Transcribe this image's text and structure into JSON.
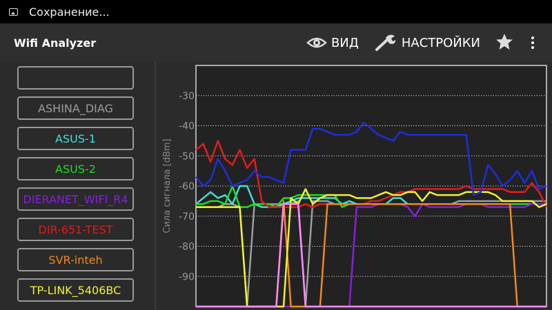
{
  "status_bar": {
    "icon": "image-icon",
    "text": "Сохранение..."
  },
  "app_bar": {
    "title": "Wifi Analyzer",
    "view_label": "ВИД",
    "view_icon": "eye-icon",
    "settings_label": "НАСТРОЙКИ",
    "settings_icon": "wrench-icon",
    "star_icon": "star-icon",
    "overflow_icon": "overflow-menu-icon"
  },
  "networks": [
    {
      "label": "",
      "color": "#ffffff"
    },
    {
      "label": "ASHINA_DIAG",
      "color": "#9e9e9e"
    },
    {
      "label": "ASUS-1",
      "color": "#40e0d8"
    },
    {
      "label": "ASUS-2",
      "color": "#22dd22"
    },
    {
      "label": "DIERANET_WIFI_R4",
      "color": "#8a1ee0"
    },
    {
      "label": "DIR-651-TEST",
      "color": "#e01e1e"
    },
    {
      "label": "SVR-inteh",
      "color": "#f08a1e"
    },
    {
      "label": "TP-LINK_5406BC",
      "color": "#f2f230"
    }
  ],
  "chart_data": {
    "type": "line",
    "ylabel": "Сила сигнала [dBm]",
    "ylim": [
      -100,
      -20
    ],
    "yticks": [
      "-30",
      "-40",
      "-50",
      "-60",
      "-70",
      "-80",
      "-90"
    ],
    "grid": true,
    "series": [
      {
        "name": "ASHINA_DIAG",
        "color": "#9e9e9e",
        "values": [
          -67,
          -67,
          -67,
          -67,
          -66,
          -66,
          -67,
          -100,
          -66,
          -66,
          -66,
          -66,
          -66,
          -66,
          -65,
          -100,
          -65,
          -65,
          -65,
          -66,
          -66,
          -66,
          -66,
          -66,
          -66,
          -66,
          -66,
          -66,
          -66,
          -66,
          -66,
          -66,
          -66,
          -66,
          -66,
          -66,
          -65,
          -65,
          -65,
          -65,
          -65,
          -65,
          -65,
          -65,
          -65,
          -65,
          -65,
          -65,
          -65
        ]
      },
      {
        "name": "ASUS-1",
        "color": "#40e0d8",
        "values": [
          -66,
          -64,
          -62,
          -64,
          -63,
          -66,
          -60,
          -60,
          -66,
          -67,
          -67,
          -67,
          -66,
          -65,
          -64,
          -64,
          -64,
          -64,
          -64,
          -64,
          -66,
          -65,
          -66,
          -66,
          -66,
          -66,
          -66,
          -64,
          -64,
          -66,
          -66,
          -66,
          -66,
          -66,
          -66,
          -66,
          -66,
          -66,
          -66,
          -66,
          -66,
          -66,
          -66,
          -66,
          -66,
          -66,
          -66,
          -66,
          -66
        ]
      },
      {
        "name": "ASUS-2",
        "color": "#22dd22",
        "values": [
          -66,
          -66,
          -65,
          -65,
          -66,
          -60,
          -67,
          -67,
          -66,
          -66,
          -66,
          -67,
          -64,
          -64,
          -63,
          -63,
          -63,
          -63,
          -63,
          -63,
          -67,
          -66,
          -66,
          -66,
          -66,
          -66,
          -66,
          -66,
          -66,
          -66,
          -66,
          -66,
          -66,
          -66,
          -66,
          -66,
          -66,
          -66,
          -66,
          -66,
          -66,
          -66,
          -66,
          -66,
          -66,
          -66,
          -66,
          -66,
          -66
        ]
      },
      {
        "name": "DIERANET_WIFI_R4",
        "color": "#8a1ee0",
        "values": [
          -100,
          -100,
          -100,
          -100,
          -100,
          -100,
          -100,
          -100,
          -100,
          -100,
          -100,
          -100,
          -100,
          -100,
          -100,
          -100,
          -100,
          -100,
          -100,
          -100,
          -100,
          -100,
          -67,
          -67,
          -67,
          -66,
          -66,
          -66,
          -66,
          -67,
          -70,
          -66,
          -67,
          -67,
          -67,
          -67,
          -67,
          -66,
          -66,
          -66,
          -67,
          -67,
          -67,
          -67,
          -67,
          -67,
          -66,
          -66,
          -66
        ]
      },
      {
        "name": "DIR-651-TEST",
        "color": "#e01e1e",
        "values": [
          -48,
          -46,
          -52,
          -45,
          -51,
          -53,
          -48,
          -54,
          -51,
          -65,
          -67,
          -67,
          -67,
          -67,
          -67,
          -66,
          -67,
          -66,
          -66,
          -66,
          -66,
          -66,
          -66,
          -66,
          -65,
          -65,
          -64,
          -63,
          -62,
          -62,
          -61,
          -61,
          -61,
          -61,
          -61,
          -61,
          -61,
          -60,
          -61,
          -61,
          -61,
          -61,
          -61,
          -62,
          -62,
          -62,
          -59,
          -62,
          -67
        ]
      },
      {
        "name": "SVR-inteh",
        "color": "#f08a1e",
        "values": [
          -100,
          -100,
          -100,
          -100,
          -100,
          -100,
          -100,
          -100,
          -100,
          -100,
          -100,
          -100,
          -65,
          -100,
          -100,
          -100,
          -100,
          -100,
          -66,
          -66,
          -66,
          -66,
          -66,
          -66,
          -66,
          -66,
          -66,
          -66,
          -66,
          -66,
          -66,
          -66,
          -66,
          -66,
          -66,
          -66,
          -66,
          -66,
          -66,
          -66,
          -66,
          -66,
          -66,
          -66,
          -100,
          -100,
          -100,
          -100,
          -100
        ]
      },
      {
        "name": "TP-LINK_5406BC",
        "color": "#f2f230",
        "values": [
          -67,
          -67,
          -67,
          -67,
          -67,
          -67,
          -67,
          -100,
          -100,
          -100,
          -100,
          -100,
          -100,
          -64,
          -66,
          -61,
          -66,
          -64,
          -63,
          -63,
          -63,
          -63,
          -64,
          -64,
          -64,
          -63,
          -62,
          -63,
          -63,
          -62,
          -62,
          -65,
          -62,
          -63,
          -63,
          -63,
          -63,
          -62,
          -62,
          -62,
          -62,
          -63,
          -65,
          -65,
          -65,
          -65,
          -65,
          -67,
          -66
        ]
      },
      {
        "name": "",
        "color": "#ff88ff",
        "values": [
          -100,
          -100,
          -100,
          -100,
          -100,
          -100,
          -100,
          -100,
          -100,
          -100,
          -100,
          -100,
          -66,
          -66,
          -66,
          -100,
          -100,
          -100,
          -100,
          -100,
          -100,
          -100,
          -100,
          -100,
          -100,
          -100,
          -100,
          -100,
          -100,
          -100,
          -100,
          -100,
          -100,
          -100,
          -100,
          -100,
          -100,
          -100,
          -100,
          -100,
          -100,
          -100,
          -100,
          -100,
          -100,
          -100,
          -100,
          -100,
          -100
        ]
      },
      {
        "name": "",
        "color": "#1e2ee0",
        "values": [
          -57,
          -60,
          -58,
          -51,
          -55,
          -60,
          -59,
          -58,
          -55,
          -57,
          -57,
          -58,
          -59,
          -48,
          -48,
          -48,
          -41,
          -41,
          -42,
          -43,
          -43,
          -43,
          -42,
          -39,
          -41,
          -43,
          -44,
          -45,
          -42,
          -43,
          -43,
          -43,
          -43,
          -43,
          -43,
          -43,
          -43,
          -43,
          -63,
          -62,
          -53,
          -56,
          -60,
          -58,
          -55,
          -59,
          -55,
          -61,
          -60
        ]
      }
    ]
  }
}
